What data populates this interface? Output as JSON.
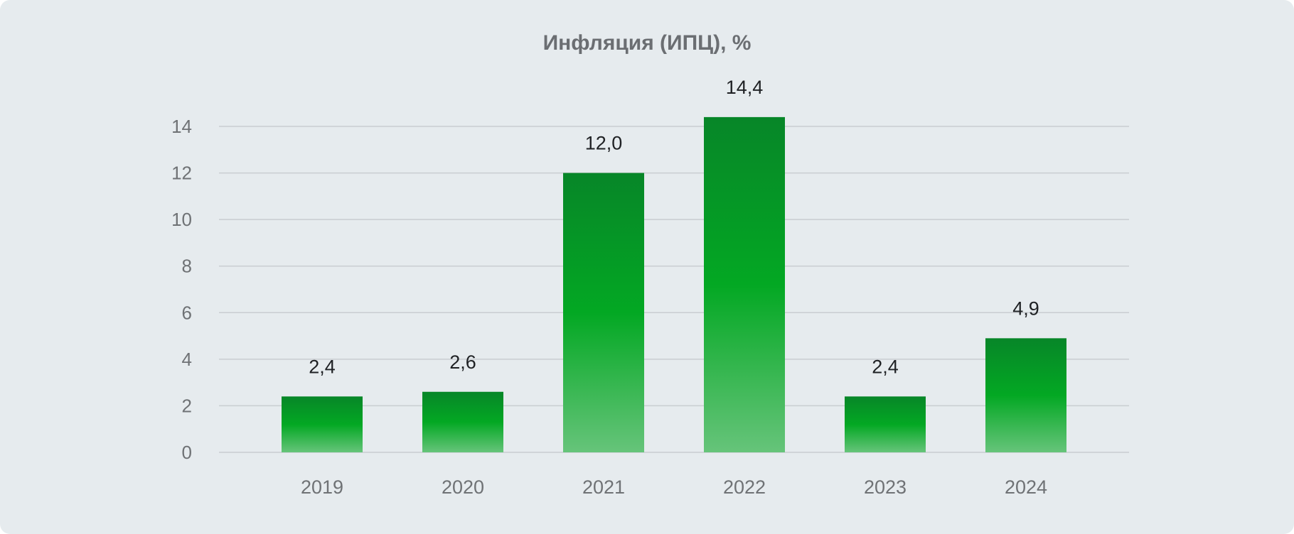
{
  "chart_data": {
    "type": "bar",
    "title": "Инфляция (ИПЦ), %",
    "categories": [
      "2019",
      "2020",
      "2021",
      "2022",
      "2023",
      "2024"
    ],
    "values": [
      2.4,
      2.6,
      12.0,
      14.4,
      2.4,
      4.9
    ],
    "value_labels": [
      "2,4",
      "2,6",
      "12,0",
      "14,4",
      "2,4",
      "4,9"
    ],
    "xlabel": "",
    "ylabel": "",
    "ylim": [
      0,
      14
    ],
    "yticks": [
      0,
      2,
      4,
      6,
      8,
      10,
      12,
      14
    ],
    "grid": true,
    "legend": "none"
  },
  "colors": {
    "background": "#e6ebee",
    "bar_top": "#078628",
    "bar_mid": "#03a823",
    "bar_bottom": "#66c47a",
    "gridline": "#c9cdd1"
  }
}
